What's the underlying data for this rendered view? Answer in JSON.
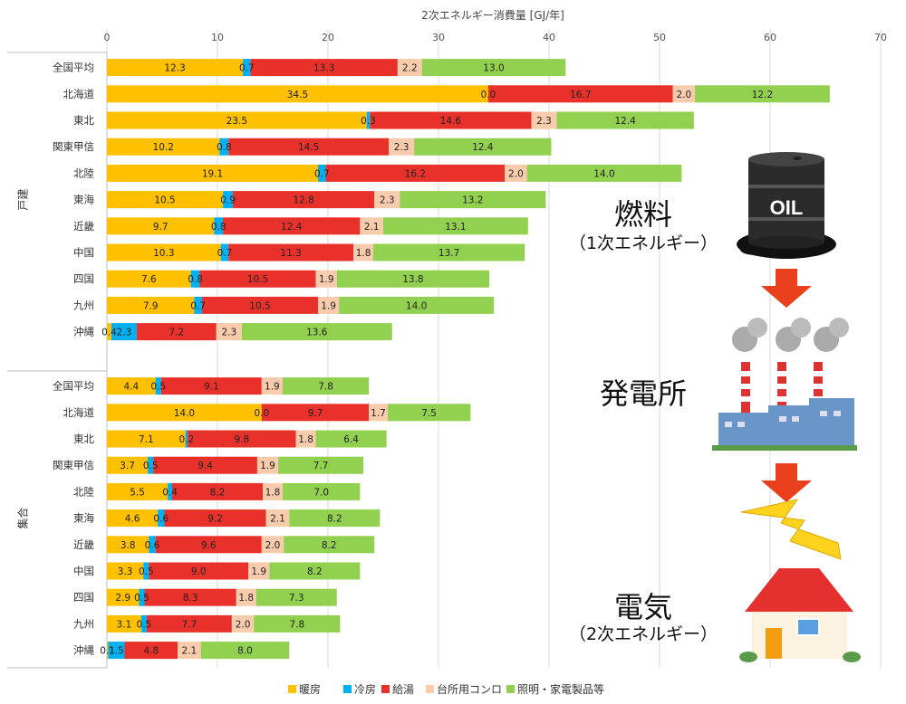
{
  "chart_data": {
    "type": "bar",
    "orientation": "horizontal",
    "stacked": true,
    "title": "2次エネルギー消費量 [GJ/年]",
    "xlim": [
      0,
      70
    ],
    "x_ticks": [
      0,
      10,
      20,
      30,
      40,
      50,
      60,
      70
    ],
    "grid": true,
    "legend_position": "bottom",
    "series": [
      {
        "name": "暖房",
        "color": "#FFC000"
      },
      {
        "name": "冷房",
        "color": "#00B0F0"
      },
      {
        "name": "給湯",
        "color": "#E8312A"
      },
      {
        "name": "台所用コンロ",
        "color": "#F8CBAD"
      },
      {
        "name": "照明・家電製品等",
        "color": "#92D050"
      }
    ],
    "groups": [
      {
        "label": "戸建",
        "rows": [
          {
            "region": "全国平均",
            "values": [
              12.3,
              0.7,
              13.3,
              2.2,
              13.0
            ]
          },
          {
            "region": "北海道",
            "values": [
              34.5,
              0.0,
              16.7,
              2.0,
              12.2
            ]
          },
          {
            "region": "東北",
            "values": [
              23.5,
              0.3,
              14.6,
              2.3,
              12.4
            ]
          },
          {
            "region": "関東甲信",
            "values": [
              10.2,
              0.8,
              14.5,
              2.3,
              12.4
            ]
          },
          {
            "region": "北陸",
            "values": [
              19.1,
              0.7,
              16.2,
              2.0,
              14.0
            ]
          },
          {
            "region": "東海",
            "values": [
              10.5,
              0.9,
              12.8,
              2.3,
              13.2
            ]
          },
          {
            "region": "近畿",
            "values": [
              9.7,
              0.8,
              12.4,
              2.1,
              13.1
            ]
          },
          {
            "region": "中国",
            "values": [
              10.3,
              0.7,
              11.3,
              1.8,
              13.7
            ]
          },
          {
            "region": "四国",
            "values": [
              7.6,
              0.8,
              10.5,
              1.9,
              13.8
            ]
          },
          {
            "region": "九州",
            "values": [
              7.9,
              0.7,
              10.5,
              1.9,
              14.0
            ]
          },
          {
            "region": "沖縄",
            "values": [
              0.4,
              2.3,
              7.2,
              2.3,
              13.6
            ],
            "labels": [
              "0.4",
              "2.3",
              "7.2",
              "2.3",
              "13.6"
            ]
          }
        ]
      },
      {
        "label": "集合",
        "rows": [
          {
            "region": "全国平均",
            "values": [
              4.4,
              0.5,
              9.1,
              1.9,
              7.8
            ]
          },
          {
            "region": "北海道",
            "values": [
              14.0,
              0.0,
              9.7,
              1.7,
              7.5
            ]
          },
          {
            "region": "東北",
            "values": [
              7.1,
              0.2,
              9.8,
              1.8,
              6.4
            ]
          },
          {
            "region": "関東甲信",
            "values": [
              3.7,
              0.5,
              9.4,
              1.9,
              7.7
            ]
          },
          {
            "region": "北陸",
            "values": [
              5.5,
              0.4,
              8.2,
              1.8,
              7.0
            ]
          },
          {
            "region": "東海",
            "values": [
              4.6,
              0.6,
              9.2,
              2.1,
              8.2
            ]
          },
          {
            "region": "近畿",
            "values": [
              3.8,
              0.6,
              9.6,
              2.0,
              8.2
            ]
          },
          {
            "region": "中国",
            "values": [
              3.3,
              0.5,
              9.0,
              1.9,
              8.2
            ]
          },
          {
            "region": "四国",
            "values": [
              2.9,
              0.5,
              8.3,
              1.8,
              7.3
            ]
          },
          {
            "region": "九州",
            "values": [
              3.1,
              0.5,
              7.7,
              2.0,
              7.8
            ]
          },
          {
            "region": "沖縄",
            "values": [
              0.1,
              1.5,
              4.8,
              2.1,
              8.0
            ]
          }
        ]
      }
    ]
  },
  "illustration": {
    "fuel_title": "燃料",
    "fuel_subtitle": "（1次エネルギー）",
    "oil_label": "OIL",
    "plant_title": "発電所",
    "electricity_title": "電気",
    "electricity_subtitle": "（2次エネルギー）",
    "icons": [
      "oil-drum-icon",
      "down-arrow-icon",
      "power-plant-icon",
      "lightning-icon",
      "house-icon"
    ]
  }
}
